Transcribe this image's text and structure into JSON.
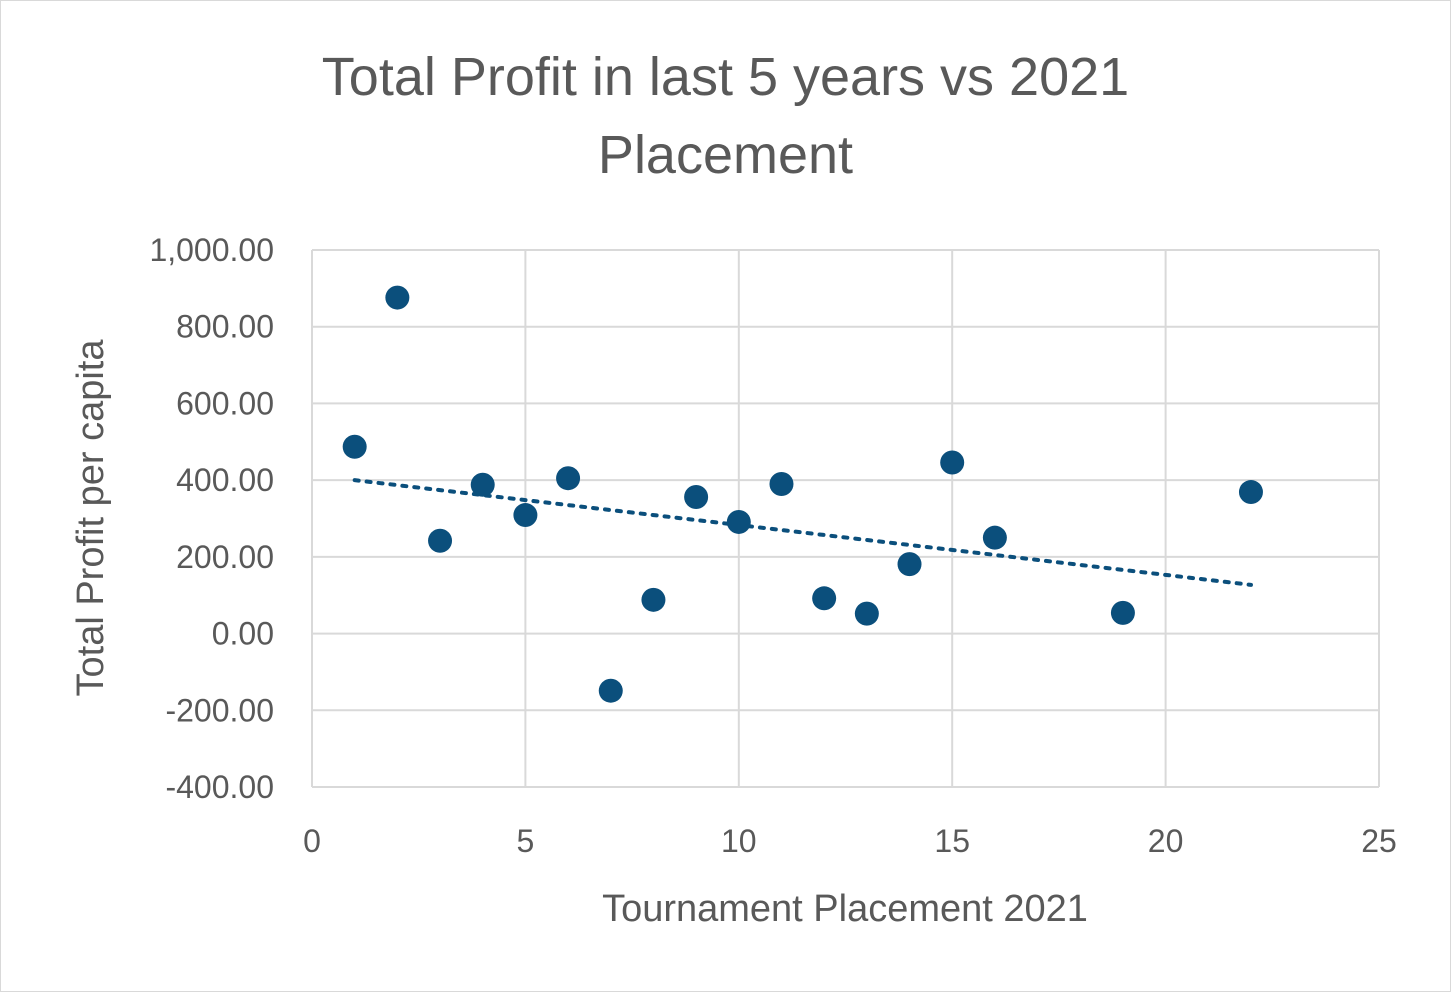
{
  "chart_data": {
    "type": "scatter",
    "title_lines": [
      "Total Profit in last 5 years vs 2021",
      "Placement"
    ],
    "xlabel": "Tournament Placement 2021",
    "ylabel": "Total Profit per capita",
    "xlim": [
      0,
      25
    ],
    "ylim": [
      -400,
      1000
    ],
    "x_ticks": [
      0,
      5,
      10,
      15,
      20,
      25
    ],
    "x_tick_labels": [
      "0",
      "5",
      "10",
      "15",
      "20",
      "25"
    ],
    "y_ticks": [
      -400,
      -200,
      0,
      200,
      400,
      600,
      800,
      1000
    ],
    "y_tick_labels": [
      "-400.00",
      "-200.00",
      "0.00",
      "200.00",
      "400.00",
      "600.00",
      "800.00",
      "1,000.00"
    ],
    "grid": true,
    "legend": "none",
    "marker_color": "#0b4f7c",
    "trendline": {
      "type": "linear",
      "style": "dotted",
      "color": "#0b4f7c",
      "from": [
        1,
        400
      ],
      "to": [
        22,
        127
      ]
    },
    "points": [
      {
        "x": 1,
        "y": 487
      },
      {
        "x": 2,
        "y": 876
      },
      {
        "x": 3,
        "y": 242
      },
      {
        "x": 4,
        "y": 388
      },
      {
        "x": 5,
        "y": 309
      },
      {
        "x": 6,
        "y": 405
      },
      {
        "x": 7,
        "y": -149
      },
      {
        "x": 8,
        "y": 88
      },
      {
        "x": 9,
        "y": 356
      },
      {
        "x": 10,
        "y": 291
      },
      {
        "x": 11,
        "y": 390
      },
      {
        "x": 12,
        "y": 92
      },
      {
        "x": 13,
        "y": 52
      },
      {
        "x": 14,
        "y": 181
      },
      {
        "x": 15,
        "y": 446
      },
      {
        "x": 16,
        "y": 250
      },
      {
        "x": 19,
        "y": 54
      },
      {
        "x": 22,
        "y": 369
      }
    ]
  }
}
